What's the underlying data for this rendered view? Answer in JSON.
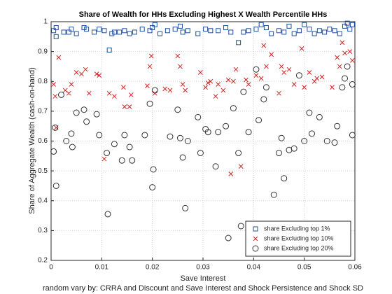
{
  "chart_data": {
    "type": "scatter",
    "title": "Share of Wealth for HHs Excluding Highest X Wealth Percentile HHs",
    "x_label": "Save Interest",
    "y_label": "Share of Aggregate Wealth (cash-on-hand)",
    "footer": "random vary by: CRRA and Discount and Save Interest and Shock Persistence and Shock SD",
    "xlim": [
      0,
      0.06
    ],
    "ylim": [
      0.2,
      1
    ],
    "xticks": [
      0,
      0.01,
      0.02,
      0.03,
      0.04,
      0.05,
      0.06
    ],
    "yticks": [
      0.2,
      0.3,
      0.4,
      0.5,
      0.6,
      0.7,
      0.8,
      0.9,
      1
    ],
    "grid": true,
    "legend": "southeast",
    "series": [
      {
        "name": "share Excluding top 1%",
        "color": "#1f4e9a",
        "marker": "square",
        "x": [
          0.0005,
          0.001,
          0.001,
          0.0025,
          0.0035,
          0.004,
          0.005,
          0.0065,
          0.007,
          0.0085,
          0.0095,
          0.0105,
          0.0115,
          0.012,
          0.0125,
          0.0135,
          0.0145,
          0.0155,
          0.0165,
          0.018,
          0.0195,
          0.02,
          0.0205,
          0.0215,
          0.023,
          0.0245,
          0.0255,
          0.026,
          0.027,
          0.029,
          0.0305,
          0.0315,
          0.033,
          0.0345,
          0.0355,
          0.037,
          0.038,
          0.039,
          0.0405,
          0.0415,
          0.0425,
          0.0435,
          0.045,
          0.046,
          0.047,
          0.048,
          0.049,
          0.05,
          0.051,
          0.052,
          0.053,
          0.054,
          0.055,
          0.056,
          0.057,
          0.058,
          0.0585,
          0.059,
          0.0595
        ],
        "values": [
          0.97,
          0.98,
          0.95,
          0.965,
          0.965,
          0.975,
          0.96,
          0.98,
          0.975,
          0.965,
          0.975,
          0.97,
          0.905,
          0.96,
          0.965,
          0.965,
          0.97,
          0.96,
          0.965,
          0.975,
          0.97,
          0.98,
          0.99,
          0.96,
          0.97,
          0.975,
          0.985,
          0.965,
          0.97,
          0.96,
          0.975,
          0.97,
          0.97,
          0.98,
          0.965,
          0.93,
          0.965,
          0.97,
          0.975,
          0.99,
          0.98,
          0.96,
          0.97,
          0.965,
          0.985,
          0.96,
          0.97,
          0.99,
          0.975,
          0.96,
          0.97,
          0.965,
          0.975,
          0.97,
          0.96,
          0.985,
          0.995,
          0.975,
          0.99
        ]
      },
      {
        "name": "share Excluding top 10%",
        "color": "#d62020",
        "marker": "x",
        "x": [
          0.0005,
          0.0008,
          0.001,
          0.0015,
          0.0028,
          0.0035,
          0.004,
          0.005,
          0.006,
          0.0068,
          0.0075,
          0.009,
          0.0095,
          0.0105,
          0.0115,
          0.0125,
          0.0143,
          0.0145,
          0.0155,
          0.0158,
          0.019,
          0.0195,
          0.0198,
          0.0205,
          0.0225,
          0.0235,
          0.025,
          0.0255,
          0.026,
          0.0265,
          0.0295,
          0.0305,
          0.031,
          0.0315,
          0.0325,
          0.033,
          0.034,
          0.035,
          0.0355,
          0.036,
          0.0365,
          0.0375,
          0.0385,
          0.039,
          0.0405,
          0.0415,
          0.042,
          0.0425,
          0.0435,
          0.045,
          0.0455,
          0.046,
          0.047,
          0.048,
          0.0495,
          0.05,
          0.051,
          0.052,
          0.0525,
          0.0535,
          0.0555,
          0.0565,
          0.057,
          0.0575,
          0.058,
          0.059,
          0.0595
        ],
        "values": [
          0.79,
          0.75,
          0.645,
          0.88,
          0.77,
          0.76,
          0.79,
          0.83,
          0.825,
          0.84,
          0.76,
          0.825,
          0.82,
          0.54,
          0.76,
          0.75,
          0.78,
          0.715,
          0.715,
          0.755,
          0.785,
          0.85,
          0.885,
          0.76,
          0.775,
          0.77,
          0.885,
          0.85,
          0.79,
          0.77,
          0.83,
          0.78,
          0.795,
          0.8,
          0.75,
          0.79,
          0.77,
          0.805,
          0.49,
          0.8,
          0.84,
          0.515,
          0.805,
          0.79,
          0.82,
          0.81,
          0.92,
          0.85,
          0.89,
          0.76,
          0.85,
          0.83,
          0.84,
          0.79,
          0.91,
          0.78,
          0.83,
          0.8,
          0.81,
          0.815,
          0.78,
          0.88,
          0.85,
          0.93,
          0.895,
          0.9,
          0.87
        ]
      },
      {
        "name": "share Excluding top 20%",
        "color": "#333333",
        "marker": "circle",
        "x": [
          0.0005,
          0.0008,
          0.001,
          0.002,
          0.003,
          0.004,
          0.0042,
          0.005,
          0.0065,
          0.007,
          0.009,
          0.0095,
          0.011,
          0.0112,
          0.0125,
          0.014,
          0.0145,
          0.0155,
          0.016,
          0.0185,
          0.0195,
          0.02,
          0.0202,
          0.0205,
          0.0235,
          0.025,
          0.0255,
          0.026,
          0.0265,
          0.027,
          0.029,
          0.0295,
          0.0305,
          0.031,
          0.0325,
          0.033,
          0.0345,
          0.035,
          0.036,
          0.037,
          0.0375,
          0.038,
          0.039,
          0.0405,
          0.041,
          0.042,
          0.0425,
          0.044,
          0.045,
          0.0455,
          0.046,
          0.047,
          0.048,
          0.049,
          0.05,
          0.051,
          0.0515,
          0.053,
          0.0545,
          0.056,
          0.0565,
          0.0575,
          0.058,
          0.0585,
          0.0595,
          0.0595
        ],
        "values": [
          0.565,
          0.645,
          0.45,
          0.755,
          0.6,
          0.625,
          0.58,
          0.695,
          0.705,
          0.665,
          0.69,
          0.62,
          0.56,
          0.355,
          0.59,
          0.535,
          0.62,
          0.58,
          0.535,
          0.62,
          0.725,
          0.445,
          0.505,
          0.77,
          0.615,
          0.705,
          0.61,
          0.545,
          0.375,
          0.6,
          0.68,
          0.56,
          0.64,
          0.63,
          0.515,
          0.63,
          0.65,
          0.275,
          0.71,
          0.56,
          0.315,
          0.765,
          0.63,
          0.84,
          0.67,
          0.74,
          0.78,
          0.42,
          0.56,
          0.61,
          0.475,
          0.57,
          0.575,
          0.82,
          0.6,
          0.695,
          0.625,
          0.68,
          0.6,
          0.595,
          0.65,
          0.78,
          0.81,
          0.85,
          0.79,
          0.62
        ]
      }
    ]
  }
}
